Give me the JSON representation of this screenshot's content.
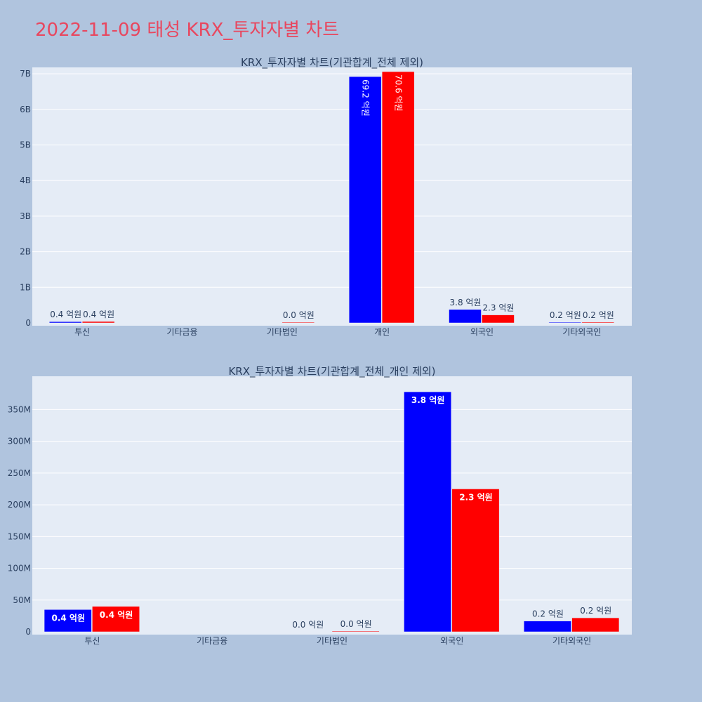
{
  "page": {
    "title": "2022-11-09 태성 KRX_투자자별 차트"
  },
  "colors": {
    "background": "#b0c4de",
    "plot_bg": "#e5ecf6",
    "title": "#e8475f",
    "series_a": "#0000ff",
    "series_b": "#ff0000"
  },
  "chart_data": [
    {
      "type": "bar",
      "title": "KRX_투자자별 차트(기관합계_전체 제외)",
      "categories": [
        "투신",
        "기타금융",
        "기타법인",
        "개인",
        "외국인",
        "기타외국인"
      ],
      "ylim": [
        0,
        7100000000
      ],
      "yticks": [
        0,
        1000000000,
        2000000000,
        3000000000,
        4000000000,
        5000000000,
        6000000000,
        7000000000
      ],
      "ytick_labels": [
        "0",
        "1B",
        "2B",
        "3B",
        "4B",
        "5B",
        "6B",
        "7B"
      ],
      "grid": true,
      "series": [
        {
          "color": "#0000ff",
          "values": [
            35000000,
            0,
            0,
            6920000000,
            378000000,
            17000000
          ],
          "labels": [
            "0.4 억원",
            "",
            "",
            "69.2 억원",
            "3.8 억원",
            "0.2 억원"
          ],
          "label_mode": [
            "out",
            "",
            "",
            "in-vertical",
            "out",
            "out"
          ]
        },
        {
          "color": "#ff0000",
          "values": [
            40000000,
            0,
            1000000,
            7060000000,
            225000000,
            22000000
          ],
          "labels": [
            "0.4 억원",
            "",
            "0.0 억원",
            "70.6 억원",
            "2.3 억원",
            "0.2 억원"
          ],
          "label_mode": [
            "out",
            "",
            "out",
            "in-vertical",
            "out",
            "out"
          ]
        }
      ]
    },
    {
      "type": "bar",
      "title": "KRX_투자자별 차트(기관합계_전체_개인 제외)",
      "categories": [
        "투신",
        "기타금융",
        "기타법인",
        "외국인",
        "기타외국인"
      ],
      "ylim": [
        0,
        398000000
      ],
      "yticks": [
        0,
        50000000,
        100000000,
        150000000,
        200000000,
        250000000,
        300000000,
        350000000
      ],
      "ytick_labels": [
        "0",
        "50M",
        "100M",
        "150M",
        "200M",
        "250M",
        "300M",
        "350M"
      ],
      "grid": true,
      "series": [
        {
          "color": "#0000ff",
          "values": [
            35000000,
            0,
            0,
            378000000,
            17000000
          ],
          "labels": [
            "0.4 억원",
            "",
            "0.0 억원",
            "3.8 억원",
            "0.2 억원"
          ],
          "label_mode": [
            "in",
            "",
            "out",
            "in",
            "out"
          ]
        },
        {
          "color": "#ff0000",
          "values": [
            40000000,
            0,
            1000000,
            225000000,
            22000000
          ],
          "labels": [
            "0.4 억원",
            "",
            "0.0 억원",
            "2.3 억원",
            "0.2 억원"
          ],
          "label_mode": [
            "in",
            "",
            "out",
            "in",
            "out"
          ]
        }
      ]
    }
  ]
}
